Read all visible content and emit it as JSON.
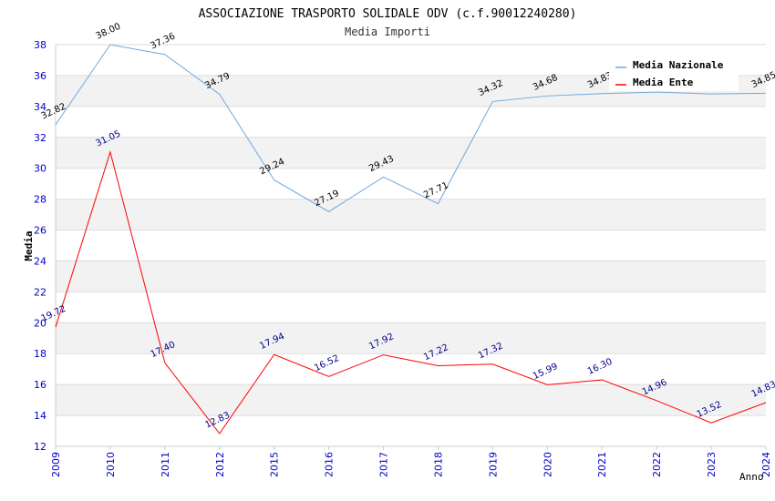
{
  "chart_data": {
    "type": "line",
    "title": "ASSOCIAZIONE TRASPORTO SOLIDALE ODV (c.f.90012240280)",
    "subtitle": "Media Importi",
    "xlabel": "Anno",
    "ylabel": "Media",
    "ylim": [
      12,
      38
    ],
    "yticks": [
      12,
      14,
      16,
      18,
      20,
      22,
      24,
      26,
      28,
      30,
      32,
      34,
      36,
      38
    ],
    "categories": [
      "2009",
      "2010",
      "2011",
      "2012",
      "2015",
      "2016",
      "2017",
      "2018",
      "2019",
      "2020",
      "2021",
      "2022",
      "2023",
      "2024"
    ],
    "series": [
      {
        "name": "Media Nazionale",
        "color": "#6fa8dc",
        "values": [
          32.82,
          38.0,
          37.36,
          34.79,
          29.24,
          27.19,
          29.43,
          27.71,
          34.32,
          34.68,
          34.83,
          34.93,
          34.81,
          34.85
        ],
        "labels": [
          "32.82",
          "38.00",
          "37.36",
          "34.79",
          "29.24",
          "27.19",
          "29.43",
          "27.71",
          "34.32",
          "34.68",
          "34.83",
          "",
          "",
          "34.85"
        ]
      },
      {
        "name": "Media Ente",
        "color": "#ff0000",
        "values": [
          19.72,
          31.05,
          17.4,
          12.83,
          17.94,
          16.52,
          17.92,
          17.22,
          17.32,
          15.99,
          16.3,
          14.96,
          13.52,
          14.83
        ],
        "labels": [
          "19.72",
          "31.05",
          "17.40",
          "12.83",
          "17.94",
          "16.52",
          "17.92",
          "17.22",
          "17.32",
          "15.99",
          "16.30",
          "14.96",
          "13.52",
          "14.83"
        ]
      }
    ],
    "legend_position": "top-right",
    "grid": true
  }
}
